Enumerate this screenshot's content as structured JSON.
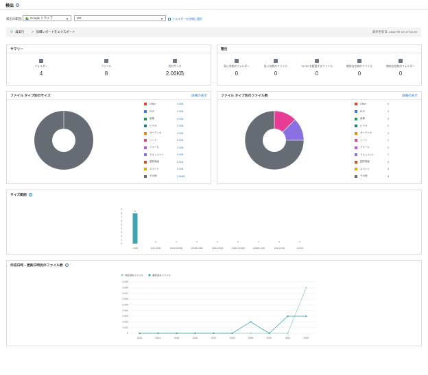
{
  "header": {
    "title": "検出"
  },
  "target": {
    "label": "検出の範囲:",
    "service_value": "Google ドライブ",
    "folder_value": "GD",
    "link_label": "フォルダーを詳細に選択"
  },
  "toolbar": {
    "rescan_label": "再実行",
    "export_label": "詳細レポートをエクスポート",
    "updated_text": "最終更新日: 2022-09-19 17:52:29"
  },
  "summary": {
    "title": "サマリー",
    "items": [
      {
        "label": "フォルダー",
        "value": "4",
        "icon": "folder-icon"
      },
      {
        "label": "ファイル",
        "value": "8",
        "icon": "file-icon"
      },
      {
        "label": "合計サイズ",
        "value": "2.06KB",
        "icon": "database-icon"
      }
    ]
  },
  "warnings": {
    "title": "警告",
    "items": [
      {
        "label": "長い名前のフォルダー",
        "value": "0",
        "icon": "folder-warning-icon"
      },
      {
        "label": "長い名前のファイル",
        "value": "0",
        "icon": "file-warning-icon"
      },
      {
        "label": "15 GB を超過するファイル",
        "value": "0",
        "icon": "large-file-icon"
      },
      {
        "label": "無効な名前のファイル",
        "value": "0",
        "icon": "invalid-file-icon"
      },
      {
        "label": "無効な名前のフォルダー",
        "value": "0",
        "icon": "invalid-folder-icon"
      }
    ]
  },
  "size_by_type": {
    "title": "ファイル タイプ別のサイズ",
    "more_label": "詳細の表示",
    "legend": [
      {
        "name": "Office",
        "value": "0.00B",
        "color": "#d84a26"
      },
      {
        "name": "PDF",
        "value": "0.00B",
        "color": "#3d7be6"
      },
      {
        "name": "画像",
        "value": "0.00B",
        "color": "#1a9a57"
      },
      {
        "name": "ビデオ",
        "value": "0.00B",
        "color": "#17867d"
      },
      {
        "name": "オーディオ",
        "value": "0.00B",
        "color": "#e68a18"
      },
      {
        "name": "シート",
        "value": "0.00B",
        "color": "#e63c95"
      },
      {
        "name": "フォーム",
        "value": "0.00B",
        "color": "#c155d8"
      },
      {
        "name": "ドキュメント",
        "value": "0.00B",
        "color": "#8a70e3"
      },
      {
        "name": "図形描画",
        "value": "0.00B",
        "color": "#d84a26"
      },
      {
        "name": "スライド",
        "value": "0.00B",
        "color": "#e6a500"
      },
      {
        "name": "その他",
        "value": "2.06KB",
        "color": "#666c73"
      }
    ]
  },
  "count_by_type": {
    "title": "ファイル タイプ別のファイル数",
    "more_label": "詳細の表示",
    "legend": [
      {
        "name": "Office",
        "value": "0",
        "color": "#d84a26"
      },
      {
        "name": "PDF",
        "value": "0",
        "color": "#3d7be6"
      },
      {
        "name": "画像",
        "value": "0",
        "color": "#1a9a57"
      },
      {
        "name": "ビデオ",
        "value": "0",
        "color": "#17867d"
      },
      {
        "name": "オーディオ",
        "value": "0",
        "color": "#e68a18"
      },
      {
        "name": "シート",
        "value": "1",
        "color": "#e63c95"
      },
      {
        "name": "フォーム",
        "value": "0",
        "color": "#c155d8"
      },
      {
        "name": "ドキュメント",
        "value": "1",
        "color": "#8a70e3"
      },
      {
        "name": "図形描画",
        "value": "0",
        "color": "#d84a26"
      },
      {
        "name": "スライド",
        "value": "0",
        "color": "#e6a500"
      },
      {
        "name": "その他",
        "value": "6",
        "color": "#666c73"
      }
    ]
  },
  "size_range": {
    "title": "サイズ範囲"
  },
  "timeline": {
    "title": "作成日時・更新日時別のファイル数"
  },
  "chart_data": [
    {
      "type": "pie",
      "labels": [
        "その他"
      ],
      "values": [
        2.06
      ],
      "colors": [
        "#666c73"
      ]
    },
    {
      "type": "pie",
      "labels": [
        "シート",
        "ドキュメント",
        "その他"
      ],
      "values": [
        1,
        1,
        6
      ],
      "colors": [
        "#e63c95",
        "#8a70e3",
        "#666c73"
      ]
    },
    {
      "type": "bar",
      "categories": [
        "<1KB",
        "1KB-10KB",
        "10KB-100KB",
        "100KB-1MB",
        "1MB-10MB",
        "10MB-100MB",
        "100MB-1GB",
        "1GB-10GB",
        ">10GB"
      ],
      "values": [
        8,
        0,
        0,
        0,
        0,
        0,
        0,
        0,
        0
      ],
      "data_labels": [
        "8",
        "0",
        "0",
        "0",
        "0",
        "0",
        "0",
        "0",
        "0"
      ],
      "ylim": [
        0,
        9
      ],
      "yticks": [
        "0",
        "1",
        "2",
        "3",
        "4",
        "5",
        "6",
        "7",
        "8",
        "9"
      ],
      "color": "#3fa3b5"
    },
    {
      "type": "line",
      "x": [
        "2012",
        "2014",
        "2016",
        "2018",
        "2017",
        "2018",
        "2019",
        "2020",
        "2021",
        "2022"
      ],
      "series": [
        {
          "name": "作成済みファイル",
          "color": "#8fd8b2",
          "values": [
            0,
            0,
            0,
            0,
            0,
            0,
            0,
            0,
            0,
            0.008
          ]
        },
        {
          "name": "更新済みファイル",
          "color": "#3fa3b5",
          "values": [
            0,
            0,
            0,
            0,
            0,
            0,
            0.002,
            0,
            0.003,
            0.003
          ]
        }
      ],
      "ylim": [
        0,
        0.009
      ],
      "yticks": [
        "0",
        "0.001",
        "0.002",
        "0.003",
        "0.004",
        "0.005",
        "0.006",
        "0.007",
        "0.008",
        "0.009"
      ],
      "grid": true,
      "legend": "top-left"
    }
  ]
}
